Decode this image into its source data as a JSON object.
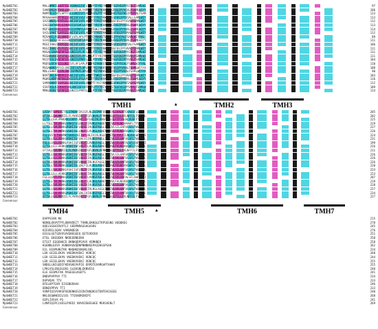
{
  "sequence_names": [
    "MpSWEET01",
    "MpSWEET02",
    "MpSWEET03",
    "MpSWEET04",
    "MpSWEET05",
    "MpSWEET06",
    "MpSWEET07",
    "MpSWEET08",
    "MpSWEET09",
    "MpSWEET10",
    "MpSWEET11",
    "MpSWEET12",
    "MpSWEET13",
    "MpSWEET14",
    "MpSWEET15",
    "MpSWEET16",
    "MpSWEET17",
    "MpSWEET18",
    "MpSWEET19",
    "MpSWEET20",
    "MpSWEET21",
    "MpSWEET22",
    "MpSWEET23"
  ],
  "consensus_label": "Consensus",
  "blocks": [
    {
      "end_positions": [
        "97",
        "106",
        "113",
        "113",
        "112",
        "113",
        "114",
        "112",
        "89",
        "111",
        "106",
        "111",
        "111",
        "111",
        "104",
        "110",
        "108",
        "90",
        "103",
        "116",
        "112",
        "109",
        "114"
      ],
      "sequence_excerpts": [
        "MALLNMKTLLKFFFGIKGNKASIVFLSPVPTFYRIYKKKSTEGFHSIPYVISLFSAMLWI",
        "SVHRDNIAFFVGLLGNIISFLVLYAPMPTFYRIYKKKSTEGFQSIPYVIALFSAMLWIYY",
        "MAMTRLSFHTLAPTFGLLGNIISFSVMYASPLPTFYRIFKKKSTEGFHSIPYVVALFSAM",
        "MFAAAAHRSFFVGLLGNIISFLVLFSPLPTFYRIYKKKSTEGFQSIPYVIALLSAMLWIY",
        "SAISHNILAFAFGILGNIISFLVFLAPVPTFYRIYKKKSTEGFQSIPYVIALFSAMLWIY",
        "SAGSSHTHNFLGIVGNIISFSVFLAPLPTFYRIYKKKSTEGFHSIPYVVALFSAMLWIYY",
        "MSFSDHIRNILGIIGNIISFMVYLAPLPTFWKIYKKKSTQGFQSIPYVVALLSAMLWIYY",
        "SAILSAHITLAFGILGNIISFLVFLAPLPTFYRIYKKKSTEGFQSIPYVVALFSAMLWIY",
        "MIVAHILFGILGNVISFLVFLAPLPTFYRIYKKKSTEGFQSIPYVIALFSAMLWIYYAL",
        "SIAISHILFAFGVLGNIISFSVFLAPLPTFYRIYKKKSTEGFHSIPYVVALFSAMLWIYY",
        "MSSIIHHLSFAFGILGNIISFLVFLAPVPTFYRIYKKKSTEGFQSIPYVIALFSAMLWIY",
        "MSSIIHHLSFLFGILGNIISFLVYLAPLPTFYRIYKKKSTEGFQSIPYVVALFSAMLWIY",
        "MASALSAHNSFAFGILGNIISFLVFLAPLPTFYRIYKKKSTEGFQSIPYVIALFSAMLWI",
        "MSSHAHAHILFLFGLLGNIISFLVYLAPLPTFYRIYKKKSTEGFQSIPYVVALFSAMLWI",
        "MSIFSSLSVSFAFGILGNIISFMVYLAPLPTFYRIYKKKSTEGFQSIPYVVALFSAMLWI",
        "MSDSLRFAFGILGNIISFLVFLAPLPTFYRIYKKKSTEGFHSIPYVIALFSAMLWIYYAL",
        "MSSAHDRFAFGILGNIISFLVYLAPLPTFYRIYKKKSTEGFQSIPYVVALFSAMLWIYYA",
        "MDLLSHHFILGVLGNIISFMVFLAPLPTFYRIYKKKSTEGFQSIPYVVALFSAMLWIYYA",
        "NVVTAKLARNVVGIIGNIISFLVFLAPLPTFWRIYKKKSTEGFQSIPYVVALFSAMLWIY",
        "MGWSLHDRYAFGVLGNIISFLVYLAPLPTFYRIYKKKSTEGFQSIPYVVALFSAMLWIYY",
        "SAMASNHFFLSFGILGNIISFLVFLAPLPTFYRIYKKKSTEGFHSIPYVIALFSAMLWIY",
        "SSVFASLAICKVAFGVLGNIISFLVFLAPLPTFYRIYKKKSTEGFQSIPYVVALFSAMLW",
        "MRHLHSHLTLFAFGILGNIISFMVYLAPLPTFYRIYKKKSTEGFQSIPYVVALFSAMLWI"
      ],
      "tm_labels": [
        "TMH1",
        "TMH2",
        "TMH3"
      ]
    },
    {
      "end_positions": [
        "205",
        "202",
        "225",
        "229",
        "227",
        "226",
        "224",
        "231",
        "199",
        "226",
        "211",
        "226",
        "226",
        "226",
        "220",
        "224",
        "223",
        "207",
        "219",
        "228",
        "227",
        "234",
        "227"
      ],
      "sequence_excerpts": [
        "LVIVVTSVMIVITFLSTKDHFIKIGFLNLIVIMVFQSQFGYLIVALNTGVAGSFLGFSW",
        "GTIVLLSVLMKRIILFLYKRSIKIIFGFLNVVLFFMKTLGLGTILLIVLNFFILFSPGPL",
        "LLTSLLSVLVMVEKKLGKRFLRKIIGFLNLIVLVNSFAPLGLFIFIALNLVLNFFTSLP",
        "LLTSLLTVLVEKKLVRKIFGSLNLIVIVVNSFAGNGTSLIVLFVLNGVAVWFLTYSIGS",
        "LLTLLLSVLVEKKLRSKIIGFLNLVIIVLNSFAGGLITLIVLSILGNFVLSFLTWSAGP",
        "LLTSLLTVLVKRKLVGKIIGLLNLFILVLNSLAGNGTSLVVLFVLNSVVLWFLTGSIGP",
        "FLLLVSTLTSHVMKTGKRSIKIIGFLNLIVIVLNSLGPLGTSLVVLFILNGVVLWFLTRS",
        "LLTSLLSLLVEKKLRSKIIGFLNLVIIVLNSFAGGLITLIVLSILGNFVLSFLTWSAGPL",
        "FGLLLGVILFEKKLRSKIIGFLNLVILVVNSFAGGLITLIVLSVLGNFALSFLSWFTGPI",
        "LLTSLLSLLVKRKLVGKIIGFLNLFILVLNSLAGNGTSLVVLFVLNSVVLWFLTGSLGPL",
        "GTIVLLSVLMKRIILFLYKRSIKIIFGFLNVVLFFMKTLGLGTILLIVLNFFILFSPGPL",
        "LLTSLLSVLVEKKLRSKIIGFLNLIVIVLNSFAGGLITLIVLSILGNFVLSFLTWSAGPL",
        "LLTSLLSLLVEKKLRGKIIGFLNLVIIVLNSLAGGLITLIVLSVLGNFVLSFLTWSAGPL",
        "LLTSLLSVLVEKKLRSKIIGFLNLVIIVLNSFAGGLITLIVLSILGNFVLSFLTWSAGPL",
        "LLTSLLTVLVKRKLVGKIIGLLNLFILVLNSLAGNGTSLVVLFVLNSVVLWFLTGSIGPL",
        "LLTSLLSVLVEKKLRSKIIGFLNLIVIVLNSFAGGLITLIVLSILGNFVLSFLTWSAGPL",
        "LLTSLLSLLVEKKLRGKIIGFLNLVIIVLNSLAGGLITLIVLSVLGNFVLSFLTWSAGPL",
        "FGLLLGVILFEKKLRSKIIGFLNLVILVVNSFAGGLITLIVLSVLGNFALSFLSWFTGPI",
        "LLTSLLTVLVKRKLVGKIIGLLNLFILVLNSLAGNGTSLVVLFVLNSVVLWFLTGSIGPL",
        "LLTSLLSVLVEKKLRSKIIGFLNLIVIVLNSFAGGLITLIVLSILGNFVLSFLTWSAGPL",
        "LLTSLLSLLVEKKLRGKIIGFLNLVIIVLNSLAGGLITLIVLSVLGNFVLSFLTWSAGPL",
        "LLTSLLSVLVEKKLRSKIIGFLNLIVIVLNSFAGGLITLIVLSILGNFVLSFLTWSAGPL",
        "GTIVLLSVLMKRIILFLYKRSIKIIFGFLNVVLFFMKTLGLGTILLIVLNFFILFSPGPL"
      ],
      "tm_labels": [
        "TMH4",
        "TMH5",
        "TMH6",
        "TMH7"
      ]
    },
    {
      "end_positions": [
        "215",
        "278",
        "245",
        "276",
        "251",
        "258",
        "258",
        "262",
        "234",
        "268",
        "244",
        "255",
        "255",
        "240",
        "241",
        "234",
        "233",
        "246",
        "233",
        "240",
        "268",
        "241",
        "269"
      ],
      "sequence_excerpts": [
        "DAPPSSVN   NV",
        "NENQLQVVVTPFLQNVVDEIT   TVNKLEKKQLETKPSEGNQ   VQQQKEG",
        "QQELSGGHIDVVTLI GEDPNRAGGAGASKV",
        "KIEVDILSQAV   VANGNQESK",
        "EESSLGETGDVVSVVEKKGEEQ   EETEVDCKV",
        "ETQL   EKEQEKK   NKDEEDNEEKK",
        "ETSST   EEQEHKCD   DKNKQDPSVVV   VEMKNEV",
        "KGENNLEEVV   VGNNVAQVQDNPNNNNSEPAIDHSSPSAK",
        "EIL   EESMGNGTKK   NHQHKQSNGNLIQG",
        "LEK   GEIELEKVV   VKEDKVVEKI VENCQC",
        "LEK   GEIELEKVV   VKEDKVVEKI VENCQC",
        "LEK   GEIELEKVV   VKEDKVVEKI VENCQC",
        "SNDELLNIGEDIFKDVSKEVVPIE   ERPDTEVAMGAPTAAKV",
        "LPKLVSLENLDLEKG   GLEKGNLEKNVESS",
        "ELE   EESMGTAK   PAGEGELKGDTS",
        "DNDVPVPPVV   TTI",
        "DVPVQVV   TTV",
        "DFELKPTGVR   EISSNGRAAA",
        "DDNEVPPVV   TTI",
        "VVNPIQIVVVKSPSEDENKESIEDVINQQKSSTENTEKIGEEE",
        "NKLEEQWHEDILSSS   TTQSHDRENIPI",
        "EEPLIVSVA   PG",
        "LVNPIQIPCLVESLPVEDI   NVVKIEKEGAEE   MEKSVENLT"
      ],
      "tm_labels": []
    }
  ]
}
